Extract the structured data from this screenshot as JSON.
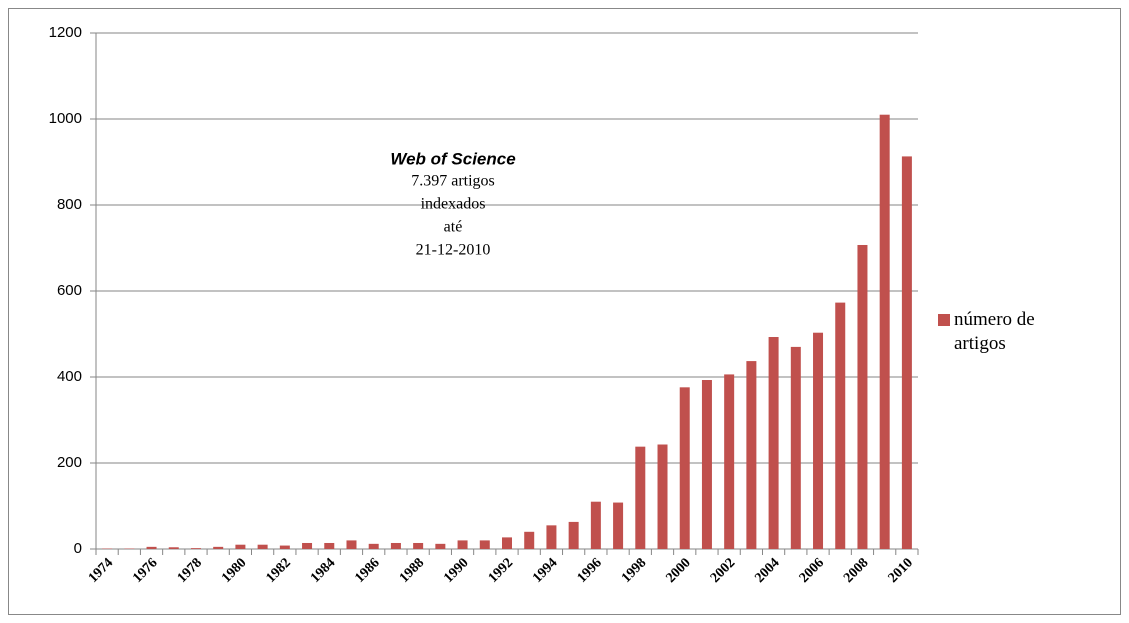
{
  "chart_data": {
    "type": "bar",
    "annotation": {
      "title": "Web of Science",
      "lines": [
        "7.397 artigos",
        "indexados",
        "até",
        "21-12-2010"
      ]
    },
    "categories": [
      "1974",
      null,
      "1976",
      null,
      "1978",
      null,
      "1980",
      null,
      "1982",
      null,
      "1984",
      null,
      "1986",
      null,
      "1988",
      null,
      "1990",
      null,
      "1992",
      null,
      "1994",
      null,
      "1996",
      null,
      "1998",
      null,
      "2000",
      null,
      "2002",
      null,
      "2004",
      null,
      "2006",
      null,
      "2008",
      null,
      "2010"
    ],
    "series": [
      {
        "name": "número de artigos",
        "color": "#c0504d",
        "values": [
          1,
          1,
          5,
          4,
          2,
          5,
          10,
          10,
          8,
          14,
          14,
          20,
          12,
          14,
          14,
          12,
          20,
          20,
          27,
          40,
          55,
          63,
          110,
          108,
          238,
          243,
          376,
          393,
          406,
          437,
          493,
          470,
          503,
          573,
          707,
          1010,
          913
        ]
      }
    ],
    "ylim": [
      0,
      1200
    ],
    "yticks": [
      0,
      200,
      400,
      600,
      800,
      1000,
      1200
    ],
    "grid": true,
    "legend": "right"
  }
}
